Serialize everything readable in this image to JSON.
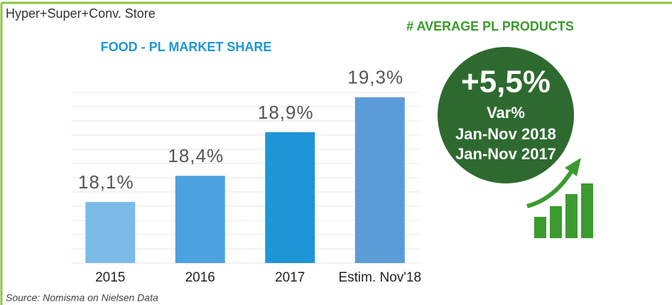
{
  "header": {
    "subtitle": "Hyper+Super+Conv. Store"
  },
  "chart_data": {
    "type": "bar",
    "title": "FOOD - PL MARKET SHARE",
    "categories": [
      "2015",
      "2016",
      "2017",
      "Estim. Nov'18"
    ],
    "values": [
      18.1,
      18.4,
      18.9,
      19.3
    ],
    "value_labels": [
      "18,1%",
      "18,4%",
      "18,9%",
      "19,3%"
    ],
    "colors": [
      "#7cbbe8",
      "#4ba2de",
      "#1e96d6",
      "#5b9bd8"
    ],
    "ylim": [
      17.4,
      19.6
    ]
  },
  "kpi": {
    "title": "# AVERAGE PL PRODUCTS",
    "value": "+5,5%",
    "lines": [
      "Var%",
      "Jan-Nov 2018",
      "Jan-Nov 2017"
    ]
  },
  "footer": {
    "source": "Source: Nomisma on Nielsen Data"
  }
}
